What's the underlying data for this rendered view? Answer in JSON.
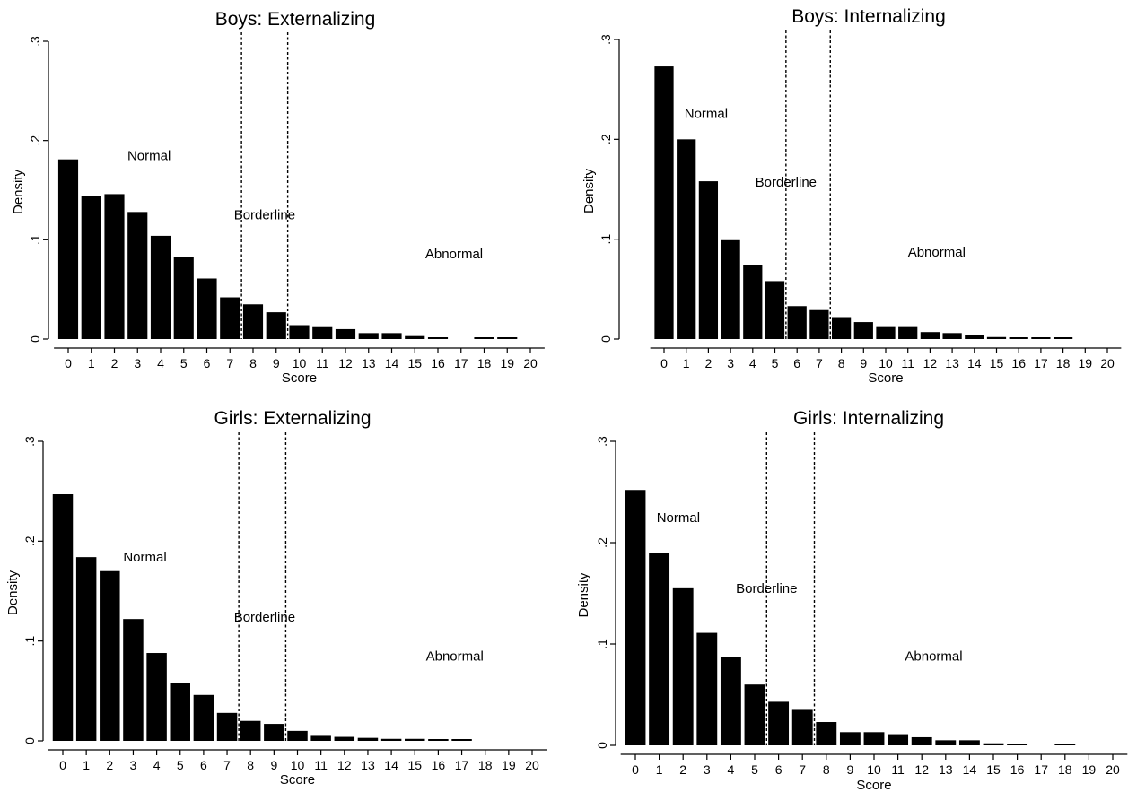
{
  "chart_data": [
    {
      "type": "bar",
      "title": "Boys: Externalizing",
      "xlabel": "Score",
      "ylabel": "Density",
      "x_ticks": [
        0,
        1,
        2,
        3,
        4,
        5,
        6,
        7,
        8,
        9,
        10,
        11,
        12,
        13,
        14,
        15,
        16,
        17,
        18,
        19,
        20
      ],
      "y_ticks": [
        "0",
        ".1",
        ".2",
        ".3"
      ],
      "y_tick_values": [
        0,
        0.1,
        0.2,
        0.3
      ],
      "ylim": [
        0,
        0.3
      ],
      "xlim": [
        -0.5,
        20.5
      ],
      "categories": [
        0,
        1,
        2,
        3,
        4,
        5,
        6,
        7,
        8,
        9,
        10,
        11,
        12,
        13,
        14,
        15,
        16,
        17,
        18,
        19
      ],
      "values": [
        0.181,
        0.144,
        0.146,
        0.128,
        0.104,
        0.083,
        0.061,
        0.042,
        0.035,
        0.027,
        0.014,
        0.012,
        0.01,
        0.006,
        0.006,
        0.003,
        0.001,
        0,
        0.001,
        0.001
      ],
      "cutoffs": [
        7.5,
        9.5
      ],
      "annotations": [
        {
          "text": "Normal",
          "x": 3.5,
          "y": 0.185
        },
        {
          "text": "Borderline",
          "x": 8.5,
          "y": 0.125
        },
        {
          "text": "Abnormal",
          "x": 16.7,
          "y": 0.086
        }
      ]
    },
    {
      "type": "bar",
      "title": "Boys: Internalizing",
      "xlabel": "Score",
      "ylabel": "Density",
      "x_ticks": [
        0,
        1,
        2,
        3,
        4,
        5,
        6,
        7,
        8,
        9,
        10,
        11,
        12,
        13,
        14,
        15,
        16,
        17,
        18,
        19,
        20
      ],
      "y_ticks": [
        "0",
        ".1",
        ".2",
        ".3"
      ],
      "y_tick_values": [
        0,
        0.1,
        0.2,
        0.3
      ],
      "ylim": [
        0,
        0.3
      ],
      "xlim": [
        -0.5,
        20.5
      ],
      "categories": [
        0,
        1,
        2,
        3,
        4,
        5,
        6,
        7,
        8,
        9,
        10,
        11,
        12,
        13,
        14,
        15,
        16,
        17,
        18
      ],
      "values": [
        0.273,
        0.2,
        0.158,
        0.099,
        0.074,
        0.058,
        0.033,
        0.029,
        0.022,
        0.017,
        0.012,
        0.012,
        0.007,
        0.006,
        0.004,
        0.002,
        0.001,
        0.001,
        0.001
      ],
      "cutoffs": [
        5.5,
        7.5
      ],
      "annotations": [
        {
          "text": "Normal",
          "x": 1.9,
          "y": 0.226
        },
        {
          "text": "Borderline",
          "x": 5.5,
          "y": 0.157
        },
        {
          "text": "Abnormal",
          "x": 12.3,
          "y": 0.087
        }
      ]
    },
    {
      "type": "bar",
      "title": "Girls: Externalizing",
      "xlabel": "Score",
      "ylabel": "Density",
      "x_ticks": [
        0,
        1,
        2,
        3,
        4,
        5,
        6,
        7,
        8,
        9,
        10,
        11,
        12,
        13,
        14,
        15,
        16,
        17,
        18,
        19,
        20
      ],
      "y_ticks": [
        "0",
        ".1",
        ".2",
        ".3"
      ],
      "y_tick_values": [
        0,
        0.1,
        0.2,
        0.3
      ],
      "ylim": [
        0,
        0.3
      ],
      "xlim": [
        -0.5,
        20.5
      ],
      "categories": [
        0,
        1,
        2,
        3,
        4,
        5,
        6,
        7,
        8,
        9,
        10,
        11,
        12,
        13,
        14,
        15,
        16,
        17
      ],
      "values": [
        0.247,
        0.184,
        0.17,
        0.122,
        0.088,
        0.058,
        0.046,
        0.028,
        0.02,
        0.017,
        0.01,
        0.005,
        0.004,
        0.003,
        0.002,
        0.002,
        0.001,
        0.001
      ],
      "cutoffs": [
        7.5,
        9.5
      ],
      "annotations": [
        {
          "text": "Normal",
          "x": 3.5,
          "y": 0.184
        },
        {
          "text": "Borderline",
          "x": 8.6,
          "y": 0.124
        },
        {
          "text": "Abnormal",
          "x": 16.7,
          "y": 0.085
        }
      ]
    },
    {
      "type": "bar",
      "title": "Girls: Internalizing",
      "xlabel": "Score",
      "ylabel": "Density",
      "x_ticks": [
        0,
        1,
        2,
        3,
        4,
        5,
        6,
        7,
        8,
        9,
        10,
        11,
        12,
        13,
        14,
        15,
        16,
        17,
        18,
        19,
        20
      ],
      "y_ticks": [
        "0",
        ".1",
        ".2",
        ".3"
      ],
      "y_tick_values": [
        0,
        0.1,
        0.2,
        0.3
      ],
      "ylim": [
        0,
        0.3
      ],
      "xlim": [
        -0.5,
        20.5
      ],
      "categories": [
        0,
        1,
        2,
        3,
        4,
        5,
        6,
        7,
        8,
        9,
        10,
        11,
        12,
        13,
        14,
        15,
        16,
        18
      ],
      "values": [
        0.252,
        0.19,
        0.155,
        0.111,
        0.087,
        0.06,
        0.043,
        0.035,
        0.023,
        0.013,
        0.013,
        0.011,
        0.008,
        0.005,
        0.005,
        0.002,
        0.001,
        0.001
      ],
      "cutoffs": [
        5.5,
        7.5
      ],
      "annotations": [
        {
          "text": "Normal",
          "x": 1.8,
          "y": 0.225
        },
        {
          "text": "Borderline",
          "x": 5.5,
          "y": 0.155
        },
        {
          "text": "Abnormal",
          "x": 12.5,
          "y": 0.088
        }
      ]
    }
  ]
}
